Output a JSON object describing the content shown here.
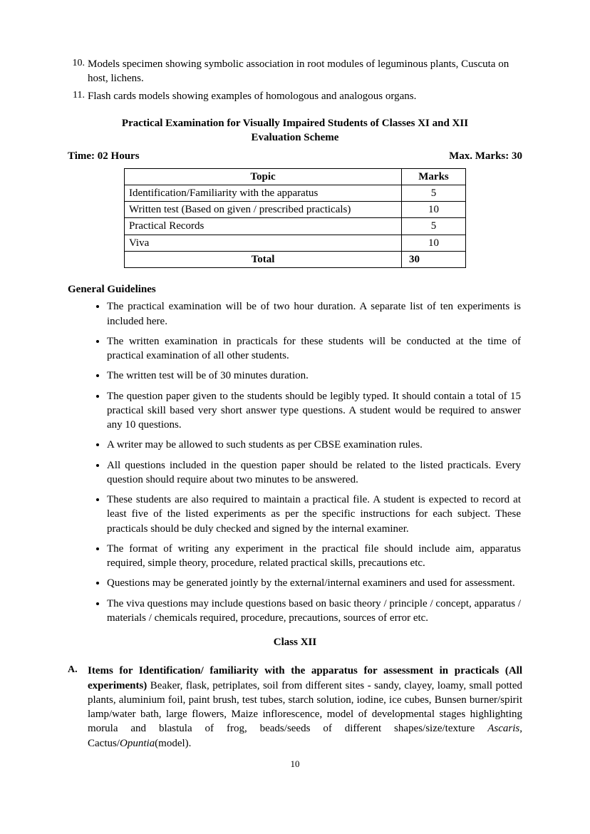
{
  "numbered": [
    {
      "n": "10.",
      "t": "Models specimen showing symbolic association in root modules of leguminous plants, Cuscuta on host, lichens."
    },
    {
      "n": "11.",
      "t": "Flash cards models showing examples of homologous and analogous organs."
    }
  ],
  "section_title_l1": "Practical Examination for Visually Impaired Students of Classes XI and XII",
  "section_title_l2": "Evaluation Scheme",
  "time_label": "Time: 02 Hours",
  "marks_label": "Max. Marks: 30",
  "table": {
    "head_topic": "Topic",
    "head_marks": "Marks",
    "rows": [
      {
        "topic": "Identification/Familiarity with the apparatus",
        "marks": "5"
      },
      {
        "topic": "Written test (Based on given / prescribed practicals)",
        "marks": "10"
      },
      {
        "topic": "Practical Records",
        "marks": "5"
      },
      {
        "topic": "Viva",
        "marks": "10"
      }
    ],
    "total_label": "Total",
    "total_marks": "30"
  },
  "gg_heading": "General Guidelines",
  "guidelines": [
    "The practical examination will be of two hour duration. A separate list of ten experiments is included here.",
    "The written examination in practicals for these students will be conducted at the time of practical examination of all other students.",
    "The written test will be of 30 minutes duration.",
    "The question paper given to the students should be legibly typed. It should contain a total of 15 practical skill based very short answer type questions. A student would be required to answer any 10 questions.",
    "A writer may be allowed to such students as per CBSE examination rules.",
    "All questions included in the question paper should be related to the listed practicals. Every question should require about two minutes to be answered.",
    "These students are also required to maintain a practical file. A student is expected to record at least five of the listed experiments as per the specific instructions for each subject. These practicals should be duly checked and signed by the internal examiner.",
    "The format of writing any experiment in the practical file should include aim, apparatus required, simple theory, procedure, related practical skills, precautions etc.",
    "Questions may be generated jointly by the external/internal examiners and used for assessment.",
    "The viva questions may include questions based on basic theory / principle / concept, apparatus / materials / chemicals required, procedure, precautions, sources of error etc."
  ],
  "class_heading": "Class XII",
  "item_a": {
    "label": "A.",
    "lead": "Items for Identification/ familiarity with the apparatus for assessment in practicals (All experiments)",
    "body_before": " Beaker, flask, petriplates, soil from different sites - sandy, clayey, loamy, small potted plants, aluminium foil, paint brush, test tubes, starch solution, iodine, ice cubes, Bunsen burner/spirit lamp/water bath, large flowers, Maize inflorescence, model of developmental stages highlighting morula and blastula of frog, beads/seeds of different shapes/size/texture ",
    "italic1": "Ascaris",
    "mid": ", Cactus/",
    "italic2": "Opuntia",
    "after": "(model)."
  },
  "page_number": "10"
}
